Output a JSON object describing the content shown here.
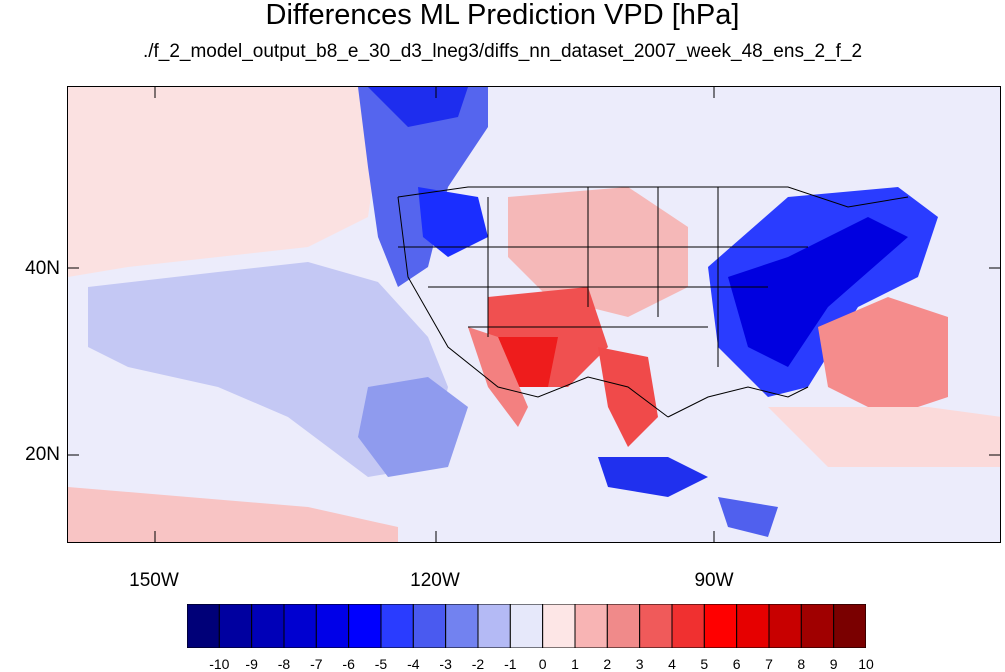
{
  "title": "Differences ML Prediction VPD [hPa]",
  "subtitle": "./f_2_model_output_b8_e_30_d3_lneg3/diffs_nn_dataset_2007_week_48_ens_2_f_2",
  "lat_labels": [
    "40N",
    "20N"
  ],
  "lon_labels": [
    "150W",
    "120W",
    "90W"
  ],
  "colorbar": {
    "labels": [
      "-10",
      "-9",
      "-8",
      "-7",
      "-6",
      "-5",
      "-4",
      "-3",
      "-2",
      "-1",
      "0",
      "1",
      "2",
      "3",
      "4",
      "5",
      "6",
      "7",
      "8",
      "9",
      "10"
    ],
    "colors": [
      "#000078",
      "#0000a0",
      "#0000b8",
      "#0000d0",
      "#0000e8",
      "#0000ff",
      "#2a3cff",
      "#4a5af0",
      "#7282f0",
      "#b4baf5",
      "#e6e8fa",
      "#fde6e6",
      "#f8b4b4",
      "#f08a8a",
      "#f05a5a",
      "#f03030",
      "#ff0000",
      "#e60000",
      "#c80000",
      "#a00000",
      "#7a0000"
    ]
  },
  "regions": {
    "blue_strong": "#1a2eff",
    "blue_mid": "#6a7aee",
    "blue_light": "#b4baf5",
    "background": "#ececfb",
    "red_light": "#fcdede",
    "red_mid": "#f58c8c",
    "red_strong": "#ee2020"
  }
}
